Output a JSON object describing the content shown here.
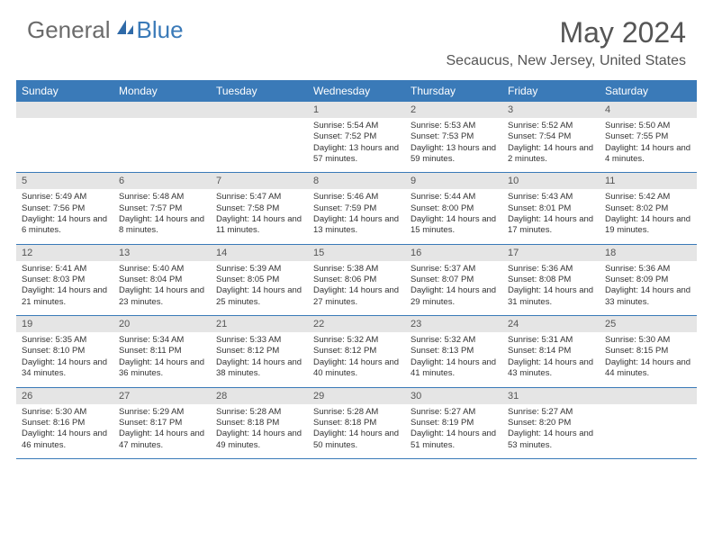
{
  "brand": {
    "part1": "General",
    "part2": "Blue"
  },
  "title": "May 2024",
  "location": "Secaucus, New Jersey, United States",
  "colors": {
    "header_bg": "#3a7ab8",
    "header_text": "#ffffff",
    "daynum_bg": "#e5e5e5",
    "text": "#333333",
    "title_text": "#555555",
    "logo_gray": "#6b6b6b",
    "logo_blue": "#3a7ab8",
    "border": "#3a7ab8"
  },
  "weekdays": [
    "Sunday",
    "Monday",
    "Tuesday",
    "Wednesday",
    "Thursday",
    "Friday",
    "Saturday"
  ],
  "weeks": [
    [
      {
        "empty": true
      },
      {
        "empty": true
      },
      {
        "empty": true
      },
      {
        "n": "1",
        "sr": "Sunrise: 5:54 AM",
        "ss": "Sunset: 7:52 PM",
        "dl": "Daylight: 13 hours and 57 minutes."
      },
      {
        "n": "2",
        "sr": "Sunrise: 5:53 AM",
        "ss": "Sunset: 7:53 PM",
        "dl": "Daylight: 13 hours and 59 minutes."
      },
      {
        "n": "3",
        "sr": "Sunrise: 5:52 AM",
        "ss": "Sunset: 7:54 PM",
        "dl": "Daylight: 14 hours and 2 minutes."
      },
      {
        "n": "4",
        "sr": "Sunrise: 5:50 AM",
        "ss": "Sunset: 7:55 PM",
        "dl": "Daylight: 14 hours and 4 minutes."
      }
    ],
    [
      {
        "n": "5",
        "sr": "Sunrise: 5:49 AM",
        "ss": "Sunset: 7:56 PM",
        "dl": "Daylight: 14 hours and 6 minutes."
      },
      {
        "n": "6",
        "sr": "Sunrise: 5:48 AM",
        "ss": "Sunset: 7:57 PM",
        "dl": "Daylight: 14 hours and 8 minutes."
      },
      {
        "n": "7",
        "sr": "Sunrise: 5:47 AM",
        "ss": "Sunset: 7:58 PM",
        "dl": "Daylight: 14 hours and 11 minutes."
      },
      {
        "n": "8",
        "sr": "Sunrise: 5:46 AM",
        "ss": "Sunset: 7:59 PM",
        "dl": "Daylight: 14 hours and 13 minutes."
      },
      {
        "n": "9",
        "sr": "Sunrise: 5:44 AM",
        "ss": "Sunset: 8:00 PM",
        "dl": "Daylight: 14 hours and 15 minutes."
      },
      {
        "n": "10",
        "sr": "Sunrise: 5:43 AM",
        "ss": "Sunset: 8:01 PM",
        "dl": "Daylight: 14 hours and 17 minutes."
      },
      {
        "n": "11",
        "sr": "Sunrise: 5:42 AM",
        "ss": "Sunset: 8:02 PM",
        "dl": "Daylight: 14 hours and 19 minutes."
      }
    ],
    [
      {
        "n": "12",
        "sr": "Sunrise: 5:41 AM",
        "ss": "Sunset: 8:03 PM",
        "dl": "Daylight: 14 hours and 21 minutes."
      },
      {
        "n": "13",
        "sr": "Sunrise: 5:40 AM",
        "ss": "Sunset: 8:04 PM",
        "dl": "Daylight: 14 hours and 23 minutes."
      },
      {
        "n": "14",
        "sr": "Sunrise: 5:39 AM",
        "ss": "Sunset: 8:05 PM",
        "dl": "Daylight: 14 hours and 25 minutes."
      },
      {
        "n": "15",
        "sr": "Sunrise: 5:38 AM",
        "ss": "Sunset: 8:06 PM",
        "dl": "Daylight: 14 hours and 27 minutes."
      },
      {
        "n": "16",
        "sr": "Sunrise: 5:37 AM",
        "ss": "Sunset: 8:07 PM",
        "dl": "Daylight: 14 hours and 29 minutes."
      },
      {
        "n": "17",
        "sr": "Sunrise: 5:36 AM",
        "ss": "Sunset: 8:08 PM",
        "dl": "Daylight: 14 hours and 31 minutes."
      },
      {
        "n": "18",
        "sr": "Sunrise: 5:36 AM",
        "ss": "Sunset: 8:09 PM",
        "dl": "Daylight: 14 hours and 33 minutes."
      }
    ],
    [
      {
        "n": "19",
        "sr": "Sunrise: 5:35 AM",
        "ss": "Sunset: 8:10 PM",
        "dl": "Daylight: 14 hours and 34 minutes."
      },
      {
        "n": "20",
        "sr": "Sunrise: 5:34 AM",
        "ss": "Sunset: 8:11 PM",
        "dl": "Daylight: 14 hours and 36 minutes."
      },
      {
        "n": "21",
        "sr": "Sunrise: 5:33 AM",
        "ss": "Sunset: 8:12 PM",
        "dl": "Daylight: 14 hours and 38 minutes."
      },
      {
        "n": "22",
        "sr": "Sunrise: 5:32 AM",
        "ss": "Sunset: 8:12 PM",
        "dl": "Daylight: 14 hours and 40 minutes."
      },
      {
        "n": "23",
        "sr": "Sunrise: 5:32 AM",
        "ss": "Sunset: 8:13 PM",
        "dl": "Daylight: 14 hours and 41 minutes."
      },
      {
        "n": "24",
        "sr": "Sunrise: 5:31 AM",
        "ss": "Sunset: 8:14 PM",
        "dl": "Daylight: 14 hours and 43 minutes."
      },
      {
        "n": "25",
        "sr": "Sunrise: 5:30 AM",
        "ss": "Sunset: 8:15 PM",
        "dl": "Daylight: 14 hours and 44 minutes."
      }
    ],
    [
      {
        "n": "26",
        "sr": "Sunrise: 5:30 AM",
        "ss": "Sunset: 8:16 PM",
        "dl": "Daylight: 14 hours and 46 minutes."
      },
      {
        "n": "27",
        "sr": "Sunrise: 5:29 AM",
        "ss": "Sunset: 8:17 PM",
        "dl": "Daylight: 14 hours and 47 minutes."
      },
      {
        "n": "28",
        "sr": "Sunrise: 5:28 AM",
        "ss": "Sunset: 8:18 PM",
        "dl": "Daylight: 14 hours and 49 minutes."
      },
      {
        "n": "29",
        "sr": "Sunrise: 5:28 AM",
        "ss": "Sunset: 8:18 PM",
        "dl": "Daylight: 14 hours and 50 minutes."
      },
      {
        "n": "30",
        "sr": "Sunrise: 5:27 AM",
        "ss": "Sunset: 8:19 PM",
        "dl": "Daylight: 14 hours and 51 minutes."
      },
      {
        "n": "31",
        "sr": "Sunrise: 5:27 AM",
        "ss": "Sunset: 8:20 PM",
        "dl": "Daylight: 14 hours and 53 minutes."
      },
      {
        "empty": true
      }
    ]
  ]
}
